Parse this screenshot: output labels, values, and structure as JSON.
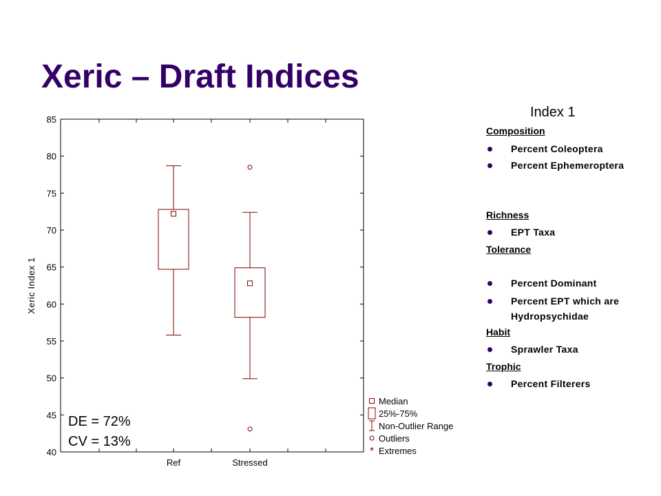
{
  "slide": {
    "title": "Xeric – Draft Indices"
  },
  "chart_data": {
    "type": "box",
    "ylabel": "Xeric Index 1",
    "ylim": [
      40,
      85
    ],
    "yticks": [
      40,
      45,
      50,
      55,
      60,
      65,
      70,
      75,
      80,
      85
    ],
    "categories": [
      "Ref",
      "Stressed"
    ],
    "boxes": [
      {
        "category": "Ref",
        "whisker_low": 55.8,
        "q1": 64.7,
        "median": 72.2,
        "q3": 72.8,
        "whisker_high": 78.7,
        "outliers": []
      },
      {
        "category": "Stressed",
        "whisker_low": 49.9,
        "q1": 58.2,
        "median": 62.8,
        "q3": 64.9,
        "whisker_high": 72.4,
        "outliers": [
          78.5,
          43.1
        ]
      }
    ],
    "legend": [
      "Median",
      "25%-75%",
      "Non-Outlier Range",
      "Outliers",
      "Extremes"
    ],
    "colors": {
      "box": "#800000"
    }
  },
  "stats": {
    "de": "DE = 72%",
    "cv": "CV = 13%"
  },
  "index_panel": {
    "title": "Index 1",
    "sections": [
      {
        "heading": "Composition",
        "items": [
          "Percent Coleoptera",
          "Percent Ephemeroptera"
        ]
      },
      {
        "heading": "Richness",
        "items": [
          "EPT Taxa"
        ]
      },
      {
        "heading": "Tolerance",
        "items": [
          "Percent Dominant",
          "Percent EPT which are Hydropsychidae"
        ]
      },
      {
        "heading": "Habit",
        "items": [
          "Sprawler Taxa"
        ]
      },
      {
        "heading": "Trophic",
        "items": [
          "Percent Filterers"
        ]
      }
    ],
    "colors": {
      "bullet": "#330066"
    }
  }
}
